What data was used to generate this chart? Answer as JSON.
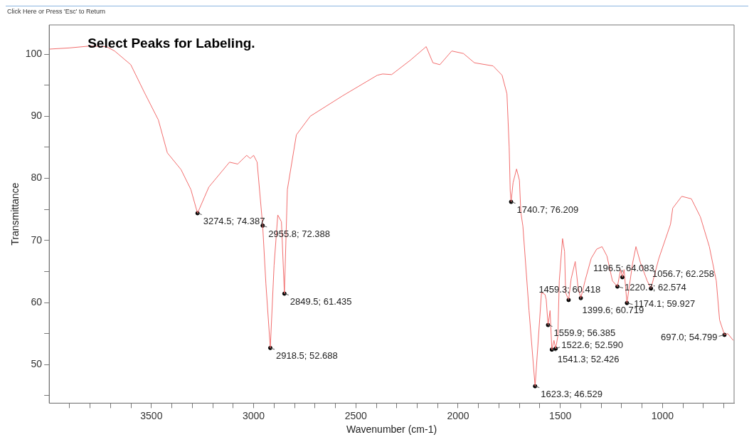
{
  "chart_data": {
    "type": "line",
    "xlabel": "Wavenumber (cm-1)",
    "ylabel": "Transmittance",
    "xlim": [
      4000,
      650
    ],
    "ylim": [
      43.8,
      104.7
    ],
    "xticks": [
      {
        "value": 3900,
        "label": null
      },
      {
        "value": 3800,
        "label": null
      },
      {
        "value": 3700,
        "label": null
      },
      {
        "value": 3600,
        "label": null
      },
      3500,
      {
        "value": 3400,
        "label": null
      },
      {
        "value": 3300,
        "label": null
      },
      {
        "value": 3200,
        "label": null
      },
      {
        "value": 3100,
        "label": null
      },
      3000,
      {
        "value": 2900,
        "label": null
      },
      {
        "value": 2800,
        "label": null
      },
      {
        "value": 2700,
        "label": null
      },
      {
        "value": 2600,
        "label": null
      },
      2500,
      {
        "value": 2400,
        "label": null
      },
      {
        "value": 2300,
        "label": null
      },
      {
        "value": 2200,
        "label": null
      },
      {
        "value": 2100,
        "label": null
      },
      2000,
      {
        "value": 1900,
        "label": null
      },
      {
        "value": 1800,
        "label": null
      },
      {
        "value": 1700,
        "label": null
      },
      {
        "value": 1600,
        "label": null
      },
      1500,
      {
        "value": 1400,
        "label": null
      },
      {
        "value": 1300,
        "label": null
      },
      {
        "value": 1200,
        "label": null
      },
      {
        "value": 1100,
        "label": null
      },
      1000,
      {
        "value": 900,
        "label": null
      },
      {
        "value": 800,
        "label": null
      },
      {
        "value": 700,
        "label": null
      }
    ],
    "yticks": [
      {
        "value": 45,
        "label": null
      },
      50,
      {
        "value": 55,
        "label": null
      },
      60,
      {
        "value": 65,
        "label": null
      },
      70,
      {
        "value": 75,
        "label": null
      },
      80,
      {
        "value": 85,
        "label": null
      },
      90,
      {
        "value": 95,
        "label": null
      },
      100
    ],
    "series": [
      {
        "color": "#f26d6d",
        "x": [
          4000,
          3900,
          3800,
          3720,
          3680,
          3601,
          3534,
          3466,
          3422,
          3355,
          3307,
          3274.5,
          3219,
          3118,
          3078,
          3034,
          3017,
          3000,
          2983,
          2955.8,
          2940,
          2918.5,
          2900,
          2882,
          2864,
          2849.5,
          2835,
          2791,
          2723,
          2564,
          2395,
          2369,
          2325,
          2234,
          2156,
          2123,
          2089,
          2031,
          1974,
          1920,
          1829,
          1785,
          1761,
          1750,
          1745,
          1740.7,
          1731,
          1714,
          1700,
          1693,
          1683,
          1653,
          1623.3,
          1592,
          1575,
          1569,
          1559.9,
          1550,
          1541.3,
          1531,
          1522.6,
          1512,
          1505,
          1489,
          1479,
          1474,
          1459.3,
          1447,
          1427,
          1413,
          1399.6,
          1379,
          1349,
          1322,
          1296,
          1272,
          1245,
          1220.7,
          1205,
          1196.5,
          1188,
          1174.1,
          1146,
          1130,
          1108,
          1075,
          1056.7,
          1018,
          961,
          950,
          906,
          859,
          815,
          771,
          737,
          721,
          697,
          681,
          654
        ],
        "values": [
          100.8,
          101.0,
          101.3,
          101.2,
          100.5,
          98.3,
          93.8,
          89.4,
          84.1,
          81.4,
          78.2,
          74.387,
          78.6,
          82.6,
          82.3,
          83.7,
          83.2,
          83.7,
          82.6,
          72.388,
          63.0,
          52.688,
          66.0,
          74.1,
          73.0,
          61.435,
          78.2,
          87.0,
          90.0,
          93.3,
          96.6,
          96.8,
          96.7,
          99.0,
          101.2,
          98.6,
          98.3,
          100.5,
          100.1,
          98.6,
          98.1,
          96.6,
          93.6,
          85.0,
          78.0,
          76.209,
          79.3,
          81.5,
          79.7,
          74.5,
          72.3,
          58.7,
          46.529,
          61.6,
          61.3,
          60.5,
          56.385,
          58.7,
          52.426,
          53.9,
          52.59,
          54.6,
          63.5,
          70.3,
          68.2,
          61.6,
          60.418,
          63.8,
          66.6,
          62.4,
          60.719,
          63.5,
          67.1,
          68.6,
          69.0,
          67.5,
          63.5,
          62.574,
          65.3,
          64.083,
          65.3,
          59.927,
          66.4,
          69.0,
          66.4,
          63.5,
          62.258,
          67.1,
          72.6,
          75.2,
          77.1,
          76.7,
          73.8,
          69.0,
          63.5,
          57.2,
          54.799,
          55.0,
          53.9
        ]
      },
      {
        "type": "scatter",
        "color": "#000000",
        "marker": "circle",
        "x": [
          3274.5,
          2955.8,
          2849.5,
          2918.5,
          1740.7,
          1623.3,
          1559.9,
          1541.3,
          1522.6,
          1459.3,
          1399.6,
          1220.7,
          1196.5,
          1174.1,
          1056.7,
          697.0
        ],
        "values": [
          74.387,
          72.388,
          61.435,
          52.688,
          76.209,
          46.529,
          56.385,
          52.426,
          52.59,
          60.418,
          60.719,
          62.574,
          64.083,
          59.927,
          62.258,
          54.799
        ]
      }
    ],
    "annotations": [
      "Select Peaks for Labeling.",
      "Click Here or Press 'Esc' to Return",
      {
        "text": "3274.5; 74.387",
        "x": 3274.5,
        "y": 74.387
      },
      {
        "text": "2955.8; 72.388",
        "x": 2955.8,
        "y": 72.388
      },
      {
        "text": "2849.5; 61.435",
        "x": 2849.5,
        "y": 61.435
      },
      {
        "text": "2918.5; 52.688",
        "x": 2918.5,
        "y": 52.688
      },
      {
        "text": "1740.7; 76.209",
        "x": 1740.7,
        "y": 76.209
      },
      {
        "text": "1623.3; 46.529",
        "x": 1623.3,
        "y": 46.529
      },
      {
        "text": "1559.9; 56.385",
        "x": 1559.9,
        "y": 56.385
      },
      {
        "text": "1541.3; 52.426",
        "x": 1541.3,
        "y": 52.426
      },
      {
        "text": "1522.6; 52.590",
        "x": 1522.6,
        "y": 52.59
      },
      {
        "text": "1459.3; 60.418",
        "x": 1459.3,
        "y": 60.418
      },
      {
        "text": "1399.6; 60.719",
        "x": 1399.6,
        "y": 60.719
      },
      {
        "text": "1220.7; 62.574",
        "x": 1220.7,
        "y": 62.574
      },
      {
        "text": "1196.5; 64.083",
        "x": 1196.5,
        "y": 64.083
      },
      {
        "text": "1174.1; 59.927",
        "x": 1174.1,
        "y": 59.927
      },
      {
        "text": "1056.7; 62.258",
        "x": 1056.7,
        "y": 62.258
      },
      {
        "text": "697.0; 54.799",
        "x": 697.0,
        "y": 54.799
      }
    ]
  }
}
